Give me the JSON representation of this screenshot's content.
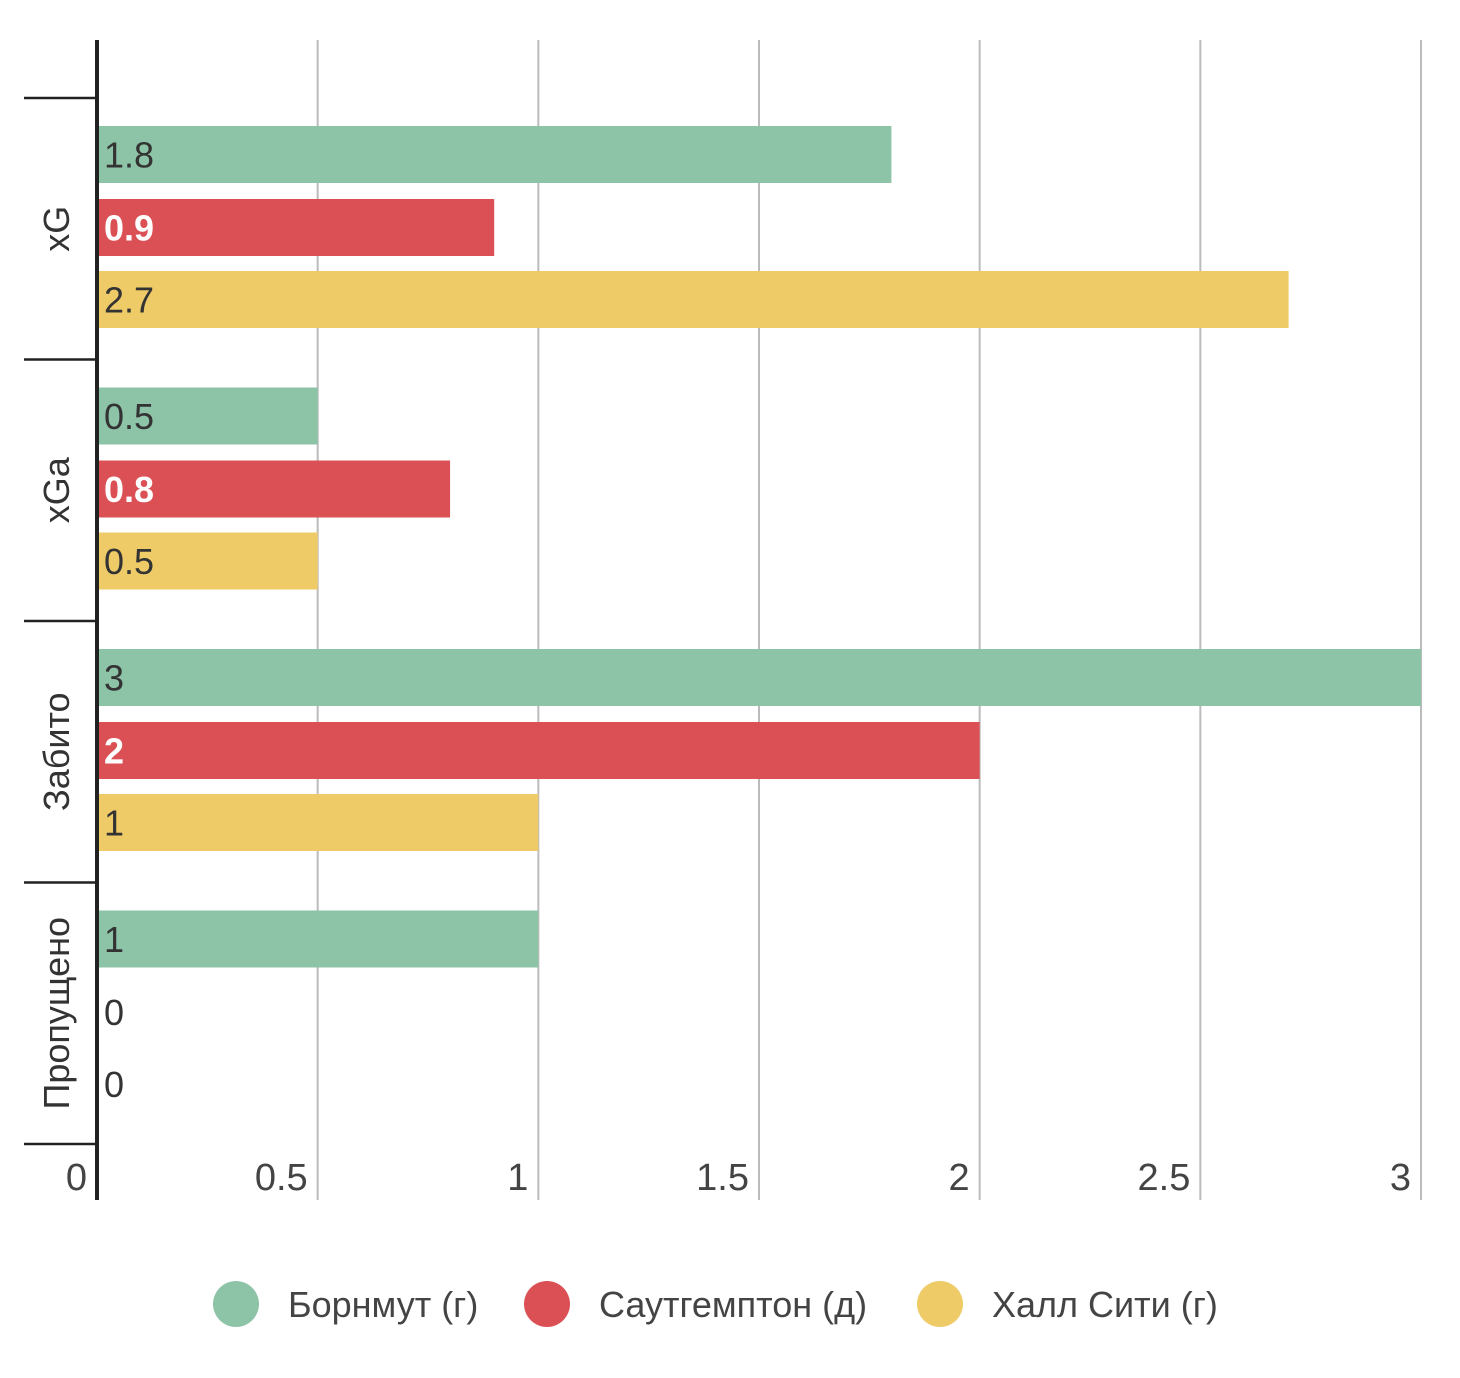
{
  "chart_data": {
    "type": "bar",
    "orientation": "horizontal",
    "categories": [
      "xG",
      "xGa",
      "Забито",
      "Пропущено"
    ],
    "series": [
      {
        "name": "Борнмут (г)",
        "values": [
          1.8,
          0.5,
          3,
          1
        ],
        "value_labels": [
          "1.8",
          "0.5",
          "3",
          "1"
        ],
        "color": "#8DC3A7",
        "label_color": "#333333",
        "label_weight": "normal"
      },
      {
        "name": "Саутгемптон (д)",
        "values": [
          0.9,
          0.8,
          2,
          0
        ],
        "value_labels": [
          "0.9",
          "0.8",
          "2",
          "0"
        ],
        "color": "#DB5055",
        "label_color": "#ffffff",
        "label_weight": "bold"
      },
      {
        "name": "Халл Сити (г)",
        "values": [
          2.7,
          0.5,
          1,
          0
        ],
        "value_labels": [
          "2.7",
          "0.5",
          "1",
          "0"
        ],
        "color": "#EFCB68",
        "label_color": "#333333",
        "label_weight": "normal"
      }
    ],
    "xlim": [
      0,
      3
    ],
    "x_ticks": [
      "0",
      "0.5",
      "1",
      "1.5",
      "2",
      "2.5",
      "3"
    ],
    "grid": true,
    "legend_position": "bottom"
  },
  "colors": {
    "gridline": "#bbbbbb",
    "axis": "#222222",
    "zero_value_label": "#333333"
  }
}
